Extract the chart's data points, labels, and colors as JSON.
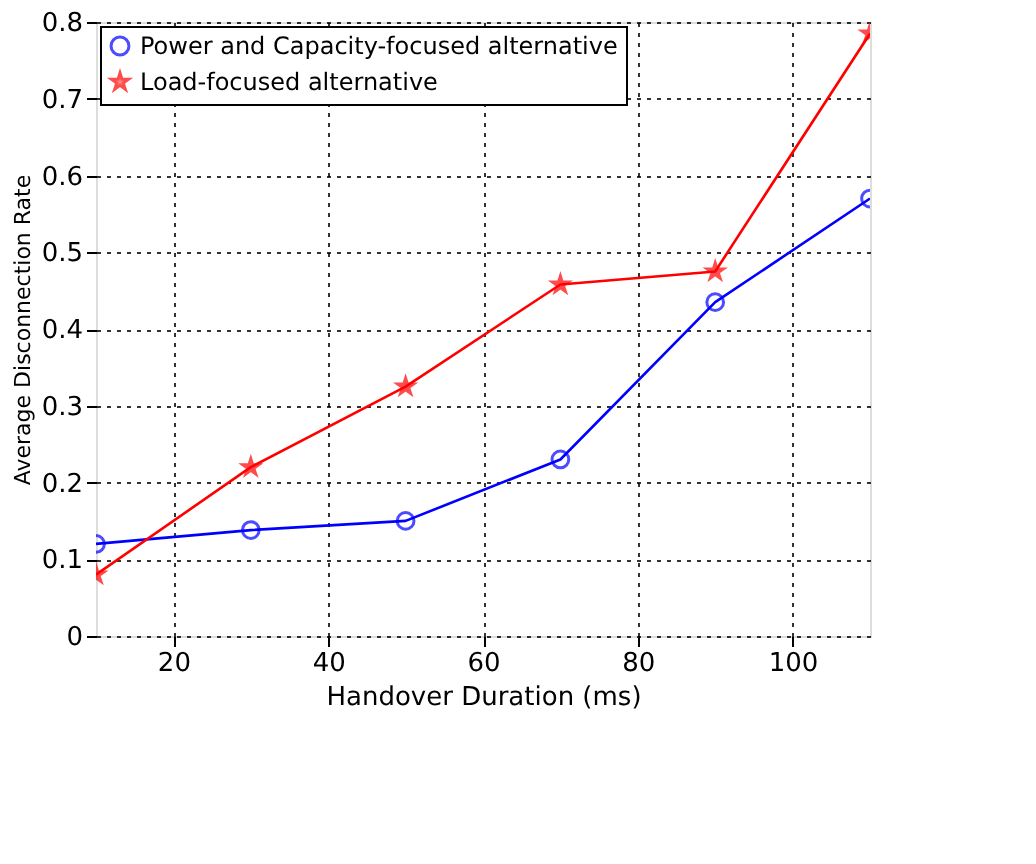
{
  "chart_data": {
    "type": "line",
    "xlabel": "Handover Duration (ms)",
    "ylabel": "Average Disconnection Rate",
    "x": [
      10,
      30,
      50,
      70,
      90,
      110
    ],
    "series": [
      {
        "name": "Power and Capacity-focused alternative",
        "color": "#0000ff",
        "marker": "circle",
        "values": [
          0.12,
          0.138,
          0.15,
          0.23,
          0.435,
          0.57
        ]
      },
      {
        "name": "Load-focused alternative",
        "color": "#ff0000",
        "marker": "star",
        "values": [
          0.08,
          0.22,
          0.325,
          0.458,
          0.475,
          0.785
        ]
      }
    ],
    "xlim": [
      10,
      110
    ],
    "xticks": [
      20,
      40,
      60,
      80,
      100
    ],
    "ylim": [
      0,
      0.8
    ],
    "yticks": [
      0,
      0.1,
      0.2,
      0.3,
      0.4,
      0.5,
      0.6,
      0.7,
      0.8
    ],
    "grid": true,
    "legend": "top left",
    "line_style": "solid"
  }
}
